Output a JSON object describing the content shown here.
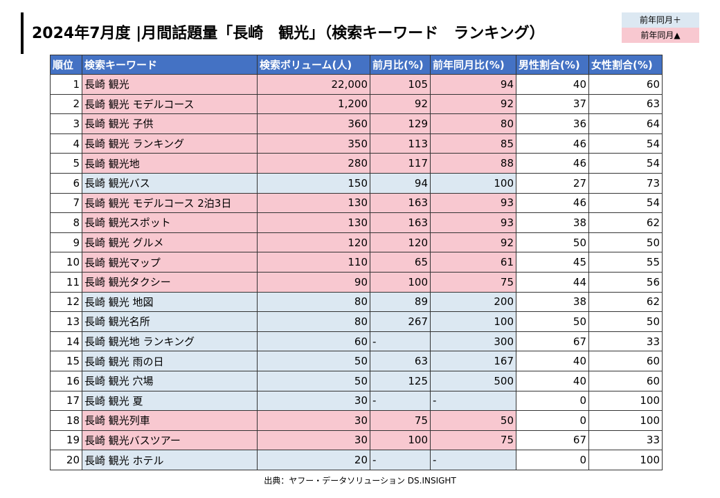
{
  "title": "2024年7月度 |月間話題量「長崎　観光」（検索キーワード　ランキング）",
  "legend": {
    "up_label": "前年同月＋",
    "down_label": "前年同月▲"
  },
  "colors": {
    "header_bg": "#4472c4",
    "down": "#f8c8d0",
    "up": "#dce8f2"
  },
  "table": {
    "headers": [
      "順位",
      "検索キーワード",
      "検索ボリューム(人)",
      "前月比(%)",
      "前年同月比(%)",
      "男性割合(%)",
      "女性割合(%)"
    ],
    "rows": [
      {
        "rank": "1",
        "keyword": "長崎 観光",
        "volume": "22,000",
        "mom": "105",
        "yoy": "94",
        "male": "40",
        "female": "60",
        "trend": "down"
      },
      {
        "rank": "2",
        "keyword": "長崎 観光 モデルコース",
        "volume": "1,200",
        "mom": "92",
        "yoy": "92",
        "male": "37",
        "female": "63",
        "trend": "down"
      },
      {
        "rank": "3",
        "keyword": "長崎 観光 子供",
        "volume": "360",
        "mom": "129",
        "yoy": "80",
        "male": "36",
        "female": "64",
        "trend": "down"
      },
      {
        "rank": "4",
        "keyword": "長崎 観光 ランキング",
        "volume": "350",
        "mom": "113",
        "yoy": "85",
        "male": "46",
        "female": "54",
        "trend": "down"
      },
      {
        "rank": "5",
        "keyword": "長崎 観光地",
        "volume": "280",
        "mom": "117",
        "yoy": "88",
        "male": "46",
        "female": "54",
        "trend": "down"
      },
      {
        "rank": "6",
        "keyword": "長崎 観光バス",
        "volume": "150",
        "mom": "94",
        "yoy": "100",
        "male": "27",
        "female": "73",
        "trend": "up"
      },
      {
        "rank": "7",
        "keyword": "長崎 観光 モデルコース 2泊3日",
        "volume": "130",
        "mom": "163",
        "yoy": "93",
        "male": "46",
        "female": "54",
        "trend": "down"
      },
      {
        "rank": "8",
        "keyword": "長崎 観光スポット",
        "volume": "130",
        "mom": "163",
        "yoy": "93",
        "male": "38",
        "female": "62",
        "trend": "down"
      },
      {
        "rank": "9",
        "keyword": "長崎 観光 グルメ",
        "volume": "120",
        "mom": "120",
        "yoy": "92",
        "male": "50",
        "female": "50",
        "trend": "down"
      },
      {
        "rank": "10",
        "keyword": "長崎 観光マップ",
        "volume": "110",
        "mom": "65",
        "yoy": "61",
        "male": "45",
        "female": "55",
        "trend": "down"
      },
      {
        "rank": "11",
        "keyword": "長崎 観光タクシー",
        "volume": "90",
        "mom": "100",
        "yoy": "75",
        "male": "44",
        "female": "56",
        "trend": "down"
      },
      {
        "rank": "12",
        "keyword": "長崎 観光 地図",
        "volume": "80",
        "mom": "89",
        "yoy": "200",
        "male": "38",
        "female": "62",
        "trend": "up"
      },
      {
        "rank": "13",
        "keyword": "長崎 観光名所",
        "volume": "80",
        "mom": "267",
        "yoy": "100",
        "male": "50",
        "female": "50",
        "trend": "up"
      },
      {
        "rank": "14",
        "keyword": "長崎 観光地 ランキング",
        "volume": "60",
        "mom": "-",
        "yoy": "300",
        "male": "67",
        "female": "33",
        "trend": "up"
      },
      {
        "rank": "15",
        "keyword": "長崎 観光 雨の日",
        "volume": "50",
        "mom": "63",
        "yoy": "167",
        "male": "40",
        "female": "60",
        "trend": "up"
      },
      {
        "rank": "16",
        "keyword": "長崎 観光 穴場",
        "volume": "50",
        "mom": "125",
        "yoy": "500",
        "male": "40",
        "female": "60",
        "trend": "up"
      },
      {
        "rank": "17",
        "keyword": "長崎 観光 夏",
        "volume": "30",
        "mom": "-",
        "yoy": "-",
        "male": "0",
        "female": "100",
        "trend": "up"
      },
      {
        "rank": "18",
        "keyword": "長崎 観光列車",
        "volume": "30",
        "mom": "75",
        "yoy": "50",
        "male": "0",
        "female": "100",
        "trend": "down"
      },
      {
        "rank": "19",
        "keyword": "長崎 観光バスツアー",
        "volume": "30",
        "mom": "100",
        "yoy": "75",
        "male": "67",
        "female": "33",
        "trend": "down"
      },
      {
        "rank": "20",
        "keyword": "長崎 観光 ホテル",
        "volume": "20",
        "mom": "-",
        "yoy": "-",
        "male": "0",
        "female": "100",
        "trend": "up"
      }
    ]
  },
  "source": "出典：ヤフー・データソリューション DS.INSIGHT"
}
